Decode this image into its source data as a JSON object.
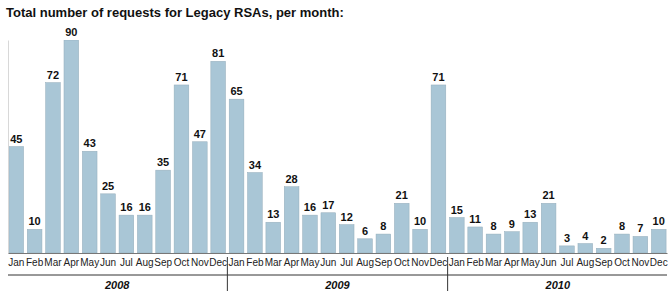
{
  "chart_data": {
    "type": "bar",
    "title": "Total number of requests for Legacy RSAs, per month:",
    "categories": [
      "Jan",
      "Feb",
      "Mar",
      "Apr",
      "May",
      "Jun",
      "Jul",
      "Aug",
      "Sep",
      "Oct",
      "Nov",
      "Dec",
      "Jan",
      "Feb",
      "Mar",
      "Apr",
      "May",
      "Jun",
      "Jul",
      "Aug",
      "Sep",
      "Oct",
      "Nov",
      "Dec",
      "Jan",
      "Feb",
      "Mar",
      "Apr",
      "May",
      "Jun",
      "Jul",
      "Aug",
      "Sep",
      "Oct",
      "Nov",
      "Dec"
    ],
    "values": [
      45,
      10,
      72,
      90,
      43,
      25,
      16,
      16,
      35,
      71,
      47,
      81,
      65,
      34,
      13,
      28,
      16,
      17,
      12,
      6,
      8,
      21,
      10,
      71,
      15,
      11,
      8,
      9,
      13,
      21,
      3,
      4,
      2,
      8,
      7,
      10
    ],
    "groups": [
      "2008",
      "2009",
      "2010"
    ],
    "color": "#a9c6d6",
    "ylim": [
      0,
      90
    ],
    "data_labels": true,
    "tick_labels": "x",
    "grid": false
  }
}
